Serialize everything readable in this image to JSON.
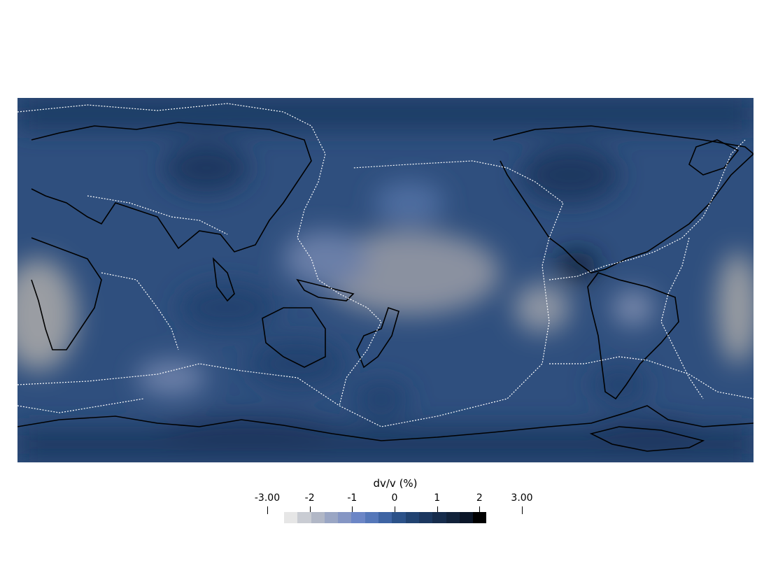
{
  "map": {
    "projection": "equirectangular",
    "center_longitude": 180,
    "features": [
      "coastlines",
      "plate-boundaries",
      "filled-contour-field"
    ],
    "colors": {
      "background": "#2f4f7e",
      "coastline": "#000000",
      "plate_boundary": "#ffffff"
    }
  },
  "colorbar": {
    "title": "dv/v (%)",
    "ticks": [
      {
        "value": -3.0,
        "label": "-3.00"
      },
      {
        "value": -2,
        "label": "-2"
      },
      {
        "value": -1,
        "label": "-1"
      },
      {
        "value": 0,
        "label": "0"
      },
      {
        "value": 1,
        "label": "1"
      },
      {
        "value": 2,
        "label": "2"
      },
      {
        "value": 3.0,
        "label": "3.00"
      }
    ],
    "range": [
      -3.0,
      3.0
    ],
    "colors": [
      "#e6e6e6",
      "#c9ccd3",
      "#b1b7c6",
      "#9aa6c4",
      "#8596c4",
      "#6c86c6",
      "#5577b9",
      "#3e64a3",
      "#2c5289",
      "#214371",
      "#1b375f",
      "#162c4c",
      "#11223a",
      "#0b1628",
      "#000000"
    ]
  }
}
